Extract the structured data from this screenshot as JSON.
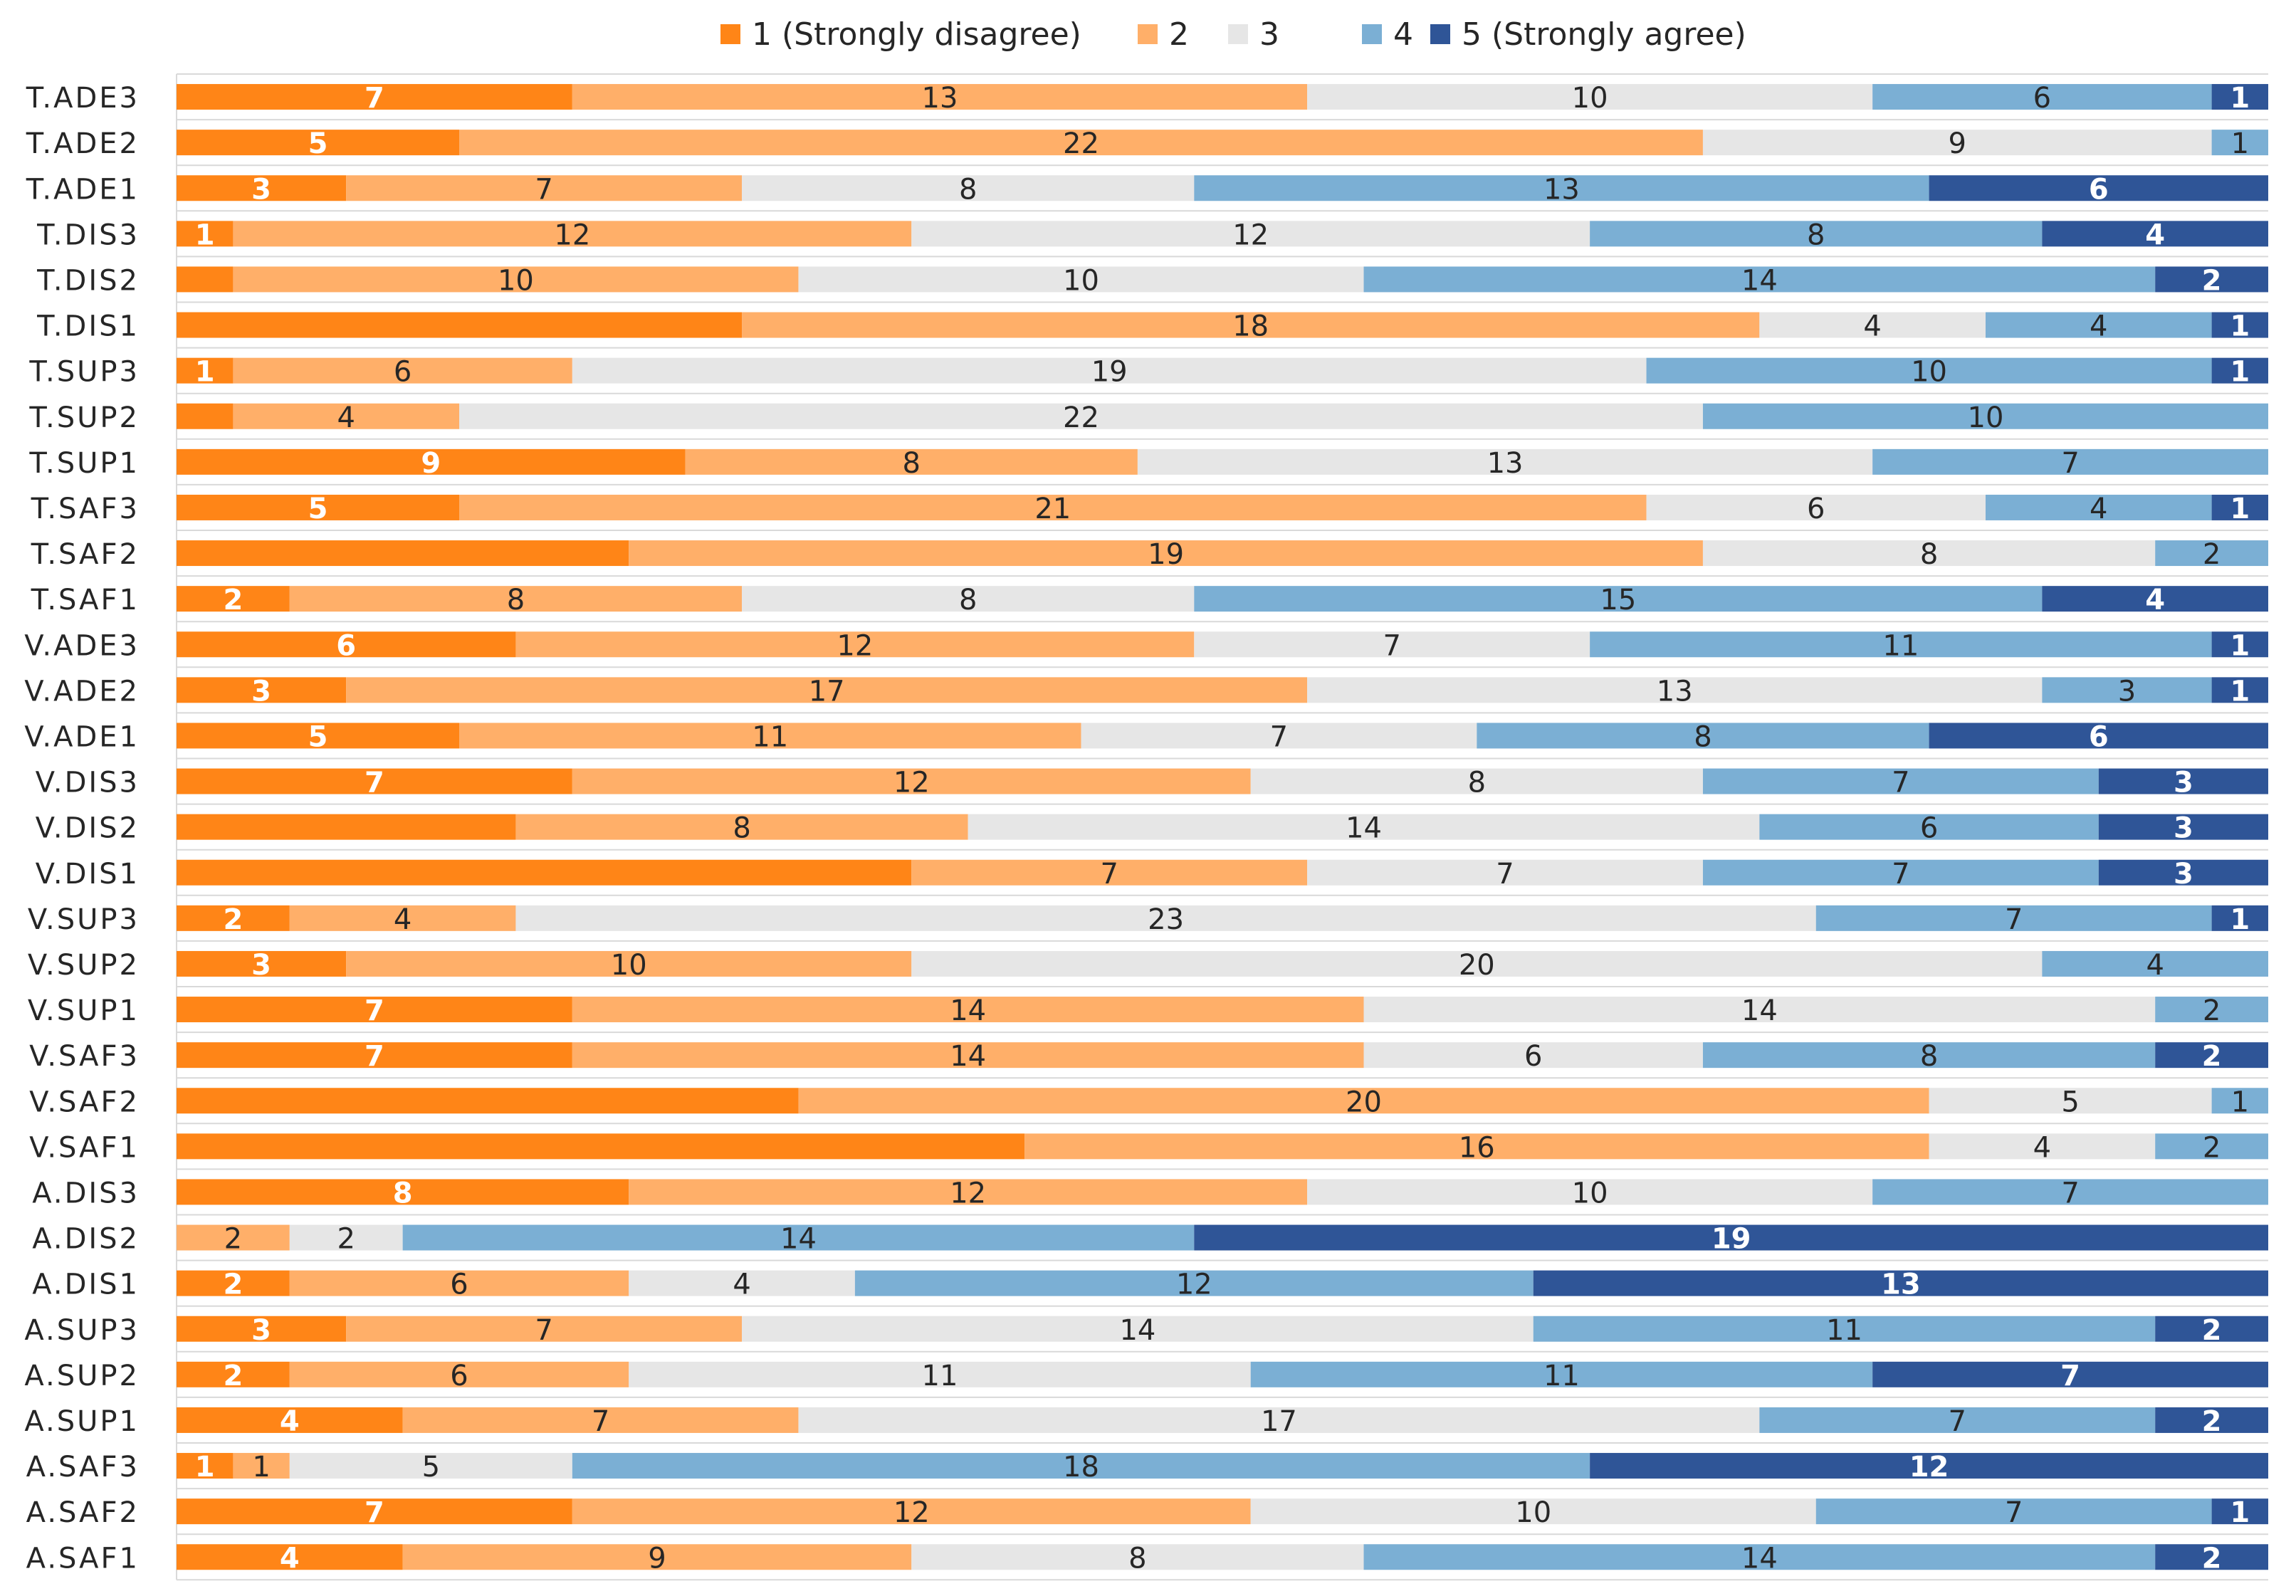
{
  "chart_data": {
    "type": "bar",
    "orientation": "horizontal",
    "stacked": true,
    "title": "",
    "xlabel": "",
    "ylabel": "",
    "legend_position": "top",
    "xlim": [
      0,
      37
    ],
    "gridlines": true,
    "categories": [
      "T.ADE3",
      "T.ADE2",
      "T.ADE1",
      "T.DIS3",
      "T.DIS2",
      "T.DIS1",
      "T.SUP3",
      "T.SUP2",
      "T.SUP1",
      "T.SAF3",
      "T.SAF2",
      "T.SAF1",
      "V.ADE3",
      "V.ADE2",
      "V.ADE1",
      "V.DIS3",
      "V.DIS2",
      "V.DIS1",
      "V.SUP3",
      "V.SUP2",
      "V.SUP1",
      "V.SAF3",
      "V.SAF2",
      "V.SAF1",
      "A.DIS3",
      "A.DIS2",
      "A.DIS1",
      "A.SUP3",
      "A.SUP2",
      "A.SUP1",
      "A.SAF3",
      "A.SAF2",
      "A.SAF1"
    ],
    "series": [
      {
        "name": "1 (Strongly disagree)",
        "color": "#FF8517",
        "label_color": "#FFFFFF",
        "values": [
          7,
          5,
          3,
          1,
          1,
          10,
          1,
          1,
          9,
          5,
          8,
          2,
          6,
          3,
          5,
          7,
          6,
          13,
          2,
          3,
          7,
          7,
          11,
          15,
          8,
          0,
          2,
          3,
          2,
          4,
          1,
          7,
          4
        ],
        "labels": [
          "7",
          "5",
          "3",
          "1",
          "",
          "",
          "1",
          "",
          "9",
          "5",
          "",
          "2",
          "6",
          "3",
          "5",
          "7",
          "",
          "",
          "2",
          "3",
          "7",
          "7",
          "",
          "",
          "8",
          "",
          "2",
          "3",
          "2",
          "4",
          "1",
          "7",
          "4"
        ]
      },
      {
        "name": "2",
        "color": "#FFAF69",
        "label_color": "#262626",
        "values": [
          13,
          22,
          7,
          12,
          10,
          18,
          6,
          4,
          8,
          21,
          19,
          8,
          12,
          17,
          11,
          12,
          8,
          7,
          4,
          10,
          14,
          14,
          20,
          16,
          12,
          2,
          6,
          7,
          6,
          7,
          1,
          12,
          9
        ],
        "labels": [
          "13",
          "22",
          "7",
          "12",
          "10",
          "18",
          "6",
          "4",
          "8",
          "21",
          "19",
          "8",
          "12",
          "17",
          "11",
          "12",
          "8",
          "7",
          "4",
          "10",
          "14",
          "14",
          "20",
          "16",
          "12",
          "2",
          "6",
          "7",
          "6",
          "7",
          "1",
          "12",
          "9"
        ]
      },
      {
        "name": "3",
        "color": "#E6E6E6",
        "label_color": "#262626",
        "values": [
          10,
          9,
          8,
          12,
          10,
          4,
          19,
          22,
          13,
          6,
          8,
          8,
          7,
          13,
          7,
          8,
          14,
          7,
          23,
          20,
          14,
          6,
          5,
          4,
          10,
          2,
          4,
          14,
          11,
          17,
          5,
          10,
          8
        ],
        "labels": [
          "10",
          "9",
          "8",
          "12",
          "10",
          "4",
          "19",
          "22",
          "13",
          "6",
          "8",
          "8",
          "7",
          "13",
          "7",
          "8",
          "14",
          "7",
          "23",
          "20",
          "14",
          "6",
          "5",
          "4",
          "10",
          "2",
          "4",
          "14",
          "11",
          "17",
          "5",
          "10",
          "8"
        ]
      },
      {
        "name": "4",
        "color": "#7BAFD4",
        "label_color": "#262626",
        "values": [
          6,
          1,
          13,
          8,
          14,
          4,
          10,
          10,
          7,
          4,
          2,
          15,
          11,
          3,
          8,
          7,
          6,
          7,
          7,
          4,
          2,
          8,
          1,
          2,
          7,
          14,
          12,
          11,
          11,
          7,
          18,
          7,
          14
        ],
        "labels": [
          "6",
          "1",
          "13",
          "8",
          "14",
          "4",
          "10",
          "10",
          "7",
          "4",
          "2",
          "15",
          "11",
          "3",
          "8",
          "7",
          "6",
          "7",
          "7",
          "4",
          "2",
          "8",
          "1",
          "2",
          "7",
          "14",
          "12",
          "11",
          "11",
          "7",
          "18",
          "7",
          "14"
        ]
      },
      {
        "name": "5 (Strongly agree)",
        "color": "#2F5597",
        "label_color": "#FFFFFF",
        "values": [
          1,
          0,
          6,
          4,
          2,
          1,
          1,
          0,
          0,
          1,
          0,
          4,
          1,
          1,
          6,
          3,
          3,
          3,
          1,
          0,
          0,
          2,
          0,
          0,
          0,
          19,
          13,
          2,
          7,
          2,
          12,
          1,
          2
        ],
        "labels": [
          "1",
          "",
          "6",
          "4",
          "2",
          "1",
          "1",
          "",
          "",
          "1",
          "",
          "4",
          "1",
          "1",
          "6",
          "3",
          "3",
          "3",
          "1",
          "",
          "",
          "2",
          "",
          "",
          "",
          "19",
          "13",
          "2",
          "7",
          "2",
          "12",
          "1",
          "2"
        ]
      }
    ]
  }
}
